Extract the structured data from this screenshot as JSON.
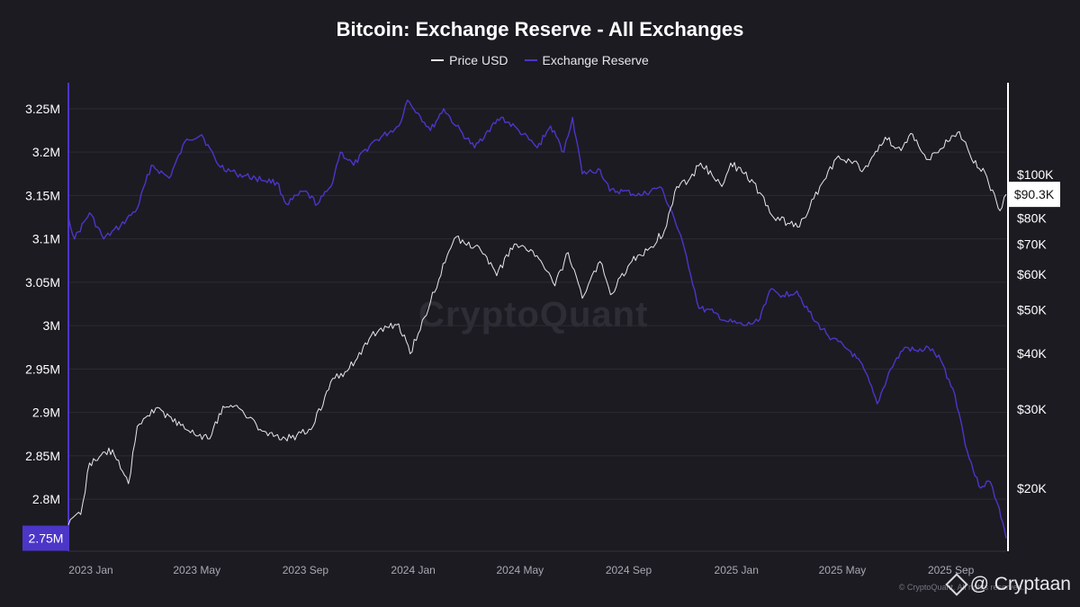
{
  "chart_data": {
    "type": "line",
    "title": "Bitcoin: Exchange Reserve - All Exchanges",
    "x_tick_labels": [
      "2023 Jan",
      "2023 May",
      "2023 Sep",
      "2024 Jan",
      "2024 May",
      "2024 Sep",
      "2025 Jan",
      "2025 May",
      "2025 Sep"
    ],
    "x_range": [
      "2023-01-01",
      "2025-11-28"
    ],
    "y_left": {
      "tick_labels": [
        "3.25M",
        "3.2M",
        "3.15M",
        "3.1M",
        "3.05M",
        "3M",
        "2.95M",
        "2.9M",
        "2.85M",
        "2.8M",
        "2.75M"
      ],
      "range": [
        2.74,
        3.28
      ],
      "current_label": "2.75M"
    },
    "y_right": {
      "scale": "log",
      "tick_labels": [
        "$100K",
        "$80K",
        "$70K",
        "$60K",
        "$50K",
        "$40K",
        "$30K",
        "$20K"
      ],
      "tick_values": [
        100,
        80,
        70,
        60,
        50,
        40,
        30,
        20
      ],
      "range": [
        14.5,
        160
      ],
      "current_label": "$90.3K"
    },
    "legend_placement": "top-center",
    "grid": true,
    "series": [
      {
        "name": "Price USD",
        "axis": "right",
        "unit": "thousand USD",
        "color": "#e8e8ec",
        "points": [
          [
            "2023-01-01",
            16.6
          ],
          [
            "2023-01-15",
            17.5
          ],
          [
            "2023-01-25",
            22.8
          ],
          [
            "2023-02-05",
            23.5
          ],
          [
            "2023-02-20",
            24.4
          ],
          [
            "2023-03-10",
            20.5
          ],
          [
            "2023-03-20",
            27.5
          ],
          [
            "2023-04-10",
            30.2
          ],
          [
            "2023-04-25",
            29.0
          ],
          [
            "2023-05-15",
            27.0
          ],
          [
            "2023-06-10",
            25.8
          ],
          [
            "2023-06-25",
            30.5
          ],
          [
            "2023-07-15",
            30.0
          ],
          [
            "2023-08-15",
            26.2
          ],
          [
            "2023-09-10",
            25.9
          ],
          [
            "2023-10-05",
            27.5
          ],
          [
            "2023-10-25",
            34.5
          ],
          [
            "2023-11-15",
            37.0
          ],
          [
            "2023-12-10",
            43.8
          ],
          [
            "2024-01-10",
            46.5
          ],
          [
            "2024-01-23",
            39.9
          ],
          [
            "2024-02-15",
            52.0
          ],
          [
            "2024-03-05",
            66.0
          ],
          [
            "2024-03-13",
            72.0
          ],
          [
            "2024-04-10",
            69.0
          ],
          [
            "2024-04-30",
            59.5
          ],
          [
            "2024-05-20",
            70.0
          ],
          [
            "2024-06-10",
            67.5
          ],
          [
            "2024-07-05",
            56.5
          ],
          [
            "2024-07-20",
            67.0
          ],
          [
            "2024-08-05",
            53.0
          ],
          [
            "2024-08-25",
            64.0
          ],
          [
            "2024-09-06",
            54.0
          ],
          [
            "2024-09-30",
            64.0
          ],
          [
            "2024-10-20",
            68.5
          ],
          [
            "2024-11-06",
            75.0
          ],
          [
            "2024-11-20",
            94.0
          ],
          [
            "2024-12-05",
            98.0
          ],
          [
            "2024-12-17",
            106.0
          ],
          [
            "2025-01-10",
            94.0
          ],
          [
            "2025-01-20",
            106.0
          ],
          [
            "2025-02-15",
            96.0
          ],
          [
            "2025-03-10",
            80.0
          ],
          [
            "2025-04-08",
            76.5
          ],
          [
            "2025-05-01",
            94.0
          ],
          [
            "2025-05-22",
            110.0
          ],
          [
            "2025-06-20",
            103.0
          ],
          [
            "2025-07-14",
            121.0
          ],
          [
            "2025-08-01",
            113.0
          ],
          [
            "2025-08-14",
            123.0
          ],
          [
            "2025-09-01",
            108.0
          ],
          [
            "2025-10-06",
            124.5
          ],
          [
            "2025-10-20",
            108.0
          ],
          [
            "2025-11-04",
            101.0
          ],
          [
            "2025-11-21",
            83.0
          ],
          [
            "2025-11-28",
            90.3
          ]
        ]
      },
      {
        "name": "Exchange Reserve",
        "axis": "left",
        "unit": "million BTC",
        "color": "#4b36c8",
        "points": [
          [
            "2023-01-01",
            3.125
          ],
          [
            "2023-01-08",
            3.1
          ],
          [
            "2023-01-25",
            3.13
          ],
          [
            "2023-02-10",
            3.1
          ],
          [
            "2023-03-01",
            3.115
          ],
          [
            "2023-03-20",
            3.135
          ],
          [
            "2023-04-05",
            3.185
          ],
          [
            "2023-04-25",
            3.17
          ],
          [
            "2023-05-15",
            3.215
          ],
          [
            "2023-06-01",
            3.22
          ],
          [
            "2023-06-20",
            3.185
          ],
          [
            "2023-07-10",
            3.175
          ],
          [
            "2023-08-01",
            3.17
          ],
          [
            "2023-08-25",
            3.165
          ],
          [
            "2023-09-05",
            3.14
          ],
          [
            "2023-09-25",
            3.155
          ],
          [
            "2023-10-10",
            3.14
          ],
          [
            "2023-10-25",
            3.16
          ],
          [
            "2023-11-05",
            3.2
          ],
          [
            "2023-11-20",
            3.185
          ],
          [
            "2023-12-10",
            3.21
          ],
          [
            "2024-01-10",
            3.23
          ],
          [
            "2024-01-20",
            3.26
          ],
          [
            "2024-02-01",
            3.245
          ],
          [
            "2024-02-15",
            3.225
          ],
          [
            "2024-03-01",
            3.25
          ],
          [
            "2024-03-15",
            3.23
          ],
          [
            "2024-04-05",
            3.205
          ],
          [
            "2024-04-20",
            3.225
          ],
          [
            "2024-05-05",
            3.24
          ],
          [
            "2024-05-25",
            3.225
          ],
          [
            "2024-06-15",
            3.205
          ],
          [
            "2024-06-30",
            3.23
          ],
          [
            "2024-07-15",
            3.2
          ],
          [
            "2024-07-25",
            3.24
          ],
          [
            "2024-08-05",
            3.175
          ],
          [
            "2024-08-25",
            3.18
          ],
          [
            "2024-09-05",
            3.155
          ],
          [
            "2024-09-20",
            3.155
          ],
          [
            "2024-10-10",
            3.15
          ],
          [
            "2024-11-01",
            3.16
          ],
          [
            "2024-11-15",
            3.13
          ],
          [
            "2024-12-01",
            3.08
          ],
          [
            "2024-12-15",
            3.02
          ],
          [
            "2025-01-01",
            3.015
          ],
          [
            "2025-01-15",
            3.005
          ],
          [
            "2025-02-05",
            3.0
          ],
          [
            "2025-02-20",
            3.005
          ],
          [
            "2025-03-05",
            3.04
          ],
          [
            "2025-03-20",
            3.035
          ],
          [
            "2025-04-05",
            3.04
          ],
          [
            "2025-04-25",
            3.005
          ],
          [
            "2025-05-15",
            2.985
          ],
          [
            "2025-06-05",
            2.97
          ],
          [
            "2025-06-20",
            2.95
          ],
          [
            "2025-07-05",
            2.91
          ],
          [
            "2025-07-20",
            2.95
          ],
          [
            "2025-08-05",
            2.975
          ],
          [
            "2025-08-20",
            2.97
          ],
          [
            "2025-09-01",
            2.975
          ],
          [
            "2025-09-15",
            2.96
          ],
          [
            "2025-10-01",
            2.92
          ],
          [
            "2025-10-15",
            2.855
          ],
          [
            "2025-10-28",
            2.815
          ],
          [
            "2025-11-10",
            2.82
          ],
          [
            "2025-11-20",
            2.79
          ],
          [
            "2025-11-28",
            2.755
          ]
        ]
      }
    ]
  },
  "watermark": "CryptoQuant",
  "copyright": "© CryptoQuant. All rights reserved.",
  "brand": "@ Cryptaan"
}
